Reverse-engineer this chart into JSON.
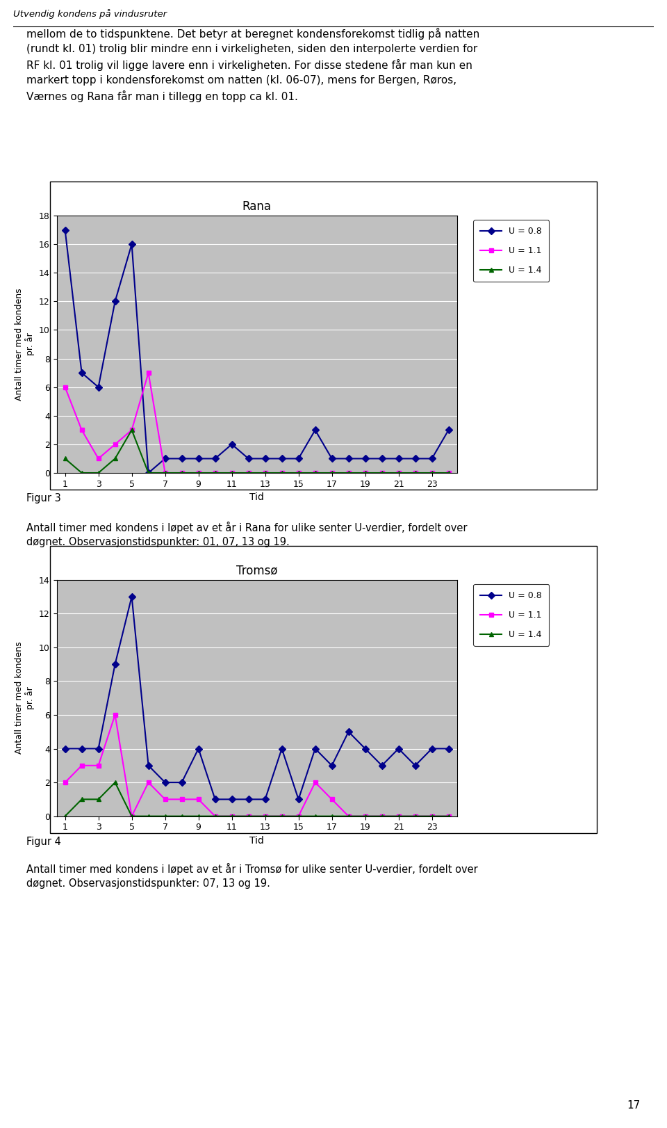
{
  "page_title": "Utvendig kondens på vindusruter",
  "header_text": "mellom de to tidspunktene. Det betyr at beregnet kondensforekomst tidlig på natten\n(rundt kl. 01) trolig blir mindre enn i virkeligheten, siden den interpolerte verdien for\nRF kl. 01 trolig vil ligge lavere enn i virkeligheten. For disse stedene får man kun en\nmarkert topp i kondensforekomst om natten (kl. 06-07), mens for Bergen, Røros,\nVærnes og Rana får man i tillegg en topp ca kl. 01.",
  "x_ticks": [
    1,
    3,
    5,
    7,
    9,
    11,
    13,
    15,
    17,
    19,
    21,
    23
  ],
  "xlabel": "Tid",
  "ylabel": "Antall timer med kondens\npr. år",
  "legend_labels": [
    "U = 0.8",
    "U = 1.1",
    "U = 1.4"
  ],
  "line_colors": [
    "#00008B",
    "#FF00FF",
    "#006400"
  ],
  "line_markers": [
    "D",
    "s",
    "^"
  ],
  "chart1_title": "Rana",
  "chart1_ylim": [
    0,
    18
  ],
  "chart1_yticks": [
    0,
    2,
    4,
    6,
    8,
    10,
    12,
    14,
    16,
    18
  ],
  "chart1_u08": [
    17,
    7,
    6,
    12,
    16,
    0,
    1,
    1,
    1,
    1,
    2,
    1,
    1,
    1,
    1,
    3,
    1,
    1,
    1,
    1,
    1,
    1,
    1,
    3
  ],
  "chart1_u11": [
    6,
    3,
    1,
    2,
    3,
    7,
    0,
    0,
    0,
    0,
    0,
    0,
    0,
    0,
    0,
    0,
    0,
    0,
    0,
    0,
    0,
    0,
    0,
    0
  ],
  "chart1_u14": [
    1,
    0,
    0,
    1,
    3,
    0,
    0,
    0,
    0,
    0,
    0,
    0,
    0,
    0,
    0,
    0,
    0,
    0,
    0,
    0,
    0,
    0,
    0,
    0
  ],
  "caption1_bold": "Figur 3",
  "caption1_text": "Antall timer med kondens i løpet av et år i Rana for ulike senter U-verdier, fordelt over\ndøgnet. Observasjonstidspunkter: 01, 07, 13 og 19.",
  "chart2_title": "Tromsø",
  "chart2_ylim": [
    0,
    14
  ],
  "chart2_yticks": [
    0,
    2,
    4,
    6,
    8,
    10,
    12,
    14
  ],
  "chart2_u08": [
    4,
    4,
    4,
    9,
    13,
    3,
    2,
    2,
    4,
    1,
    1,
    1,
    1,
    4,
    1,
    4,
    3,
    5,
    4,
    3,
    4,
    3,
    4,
    4
  ],
  "chart2_u11": [
    2,
    3,
    3,
    6,
    0,
    2,
    1,
    1,
    1,
    0,
    0,
    0,
    0,
    0,
    0,
    2,
    1,
    0,
    0,
    0,
    0,
    0,
    0,
    0
  ],
  "chart2_u14": [
    0,
    1,
    1,
    2,
    0,
    0,
    0,
    0,
    0,
    0,
    0,
    0,
    0,
    0,
    0,
    0,
    0,
    0,
    0,
    0,
    0,
    0,
    0,
    0
  ],
  "caption2_bold": "Figur 4",
  "caption2_text": "Antall timer med kondens i løpet av et år i Tromsø for ulike senter U-verdier, fordelt over\ndøgnet. Observasjonstidspunkter: 07, 13 og 19.",
  "plot_bg_color": "#C0C0C0",
  "page_number": "17",
  "marker_size": 5,
  "line_width": 1.5,
  "title_fontsize": 12,
  "axis_fontsize": 9,
  "label_fontsize": 10,
  "text_fontsize": 11,
  "caption_fontsize": 10.5
}
